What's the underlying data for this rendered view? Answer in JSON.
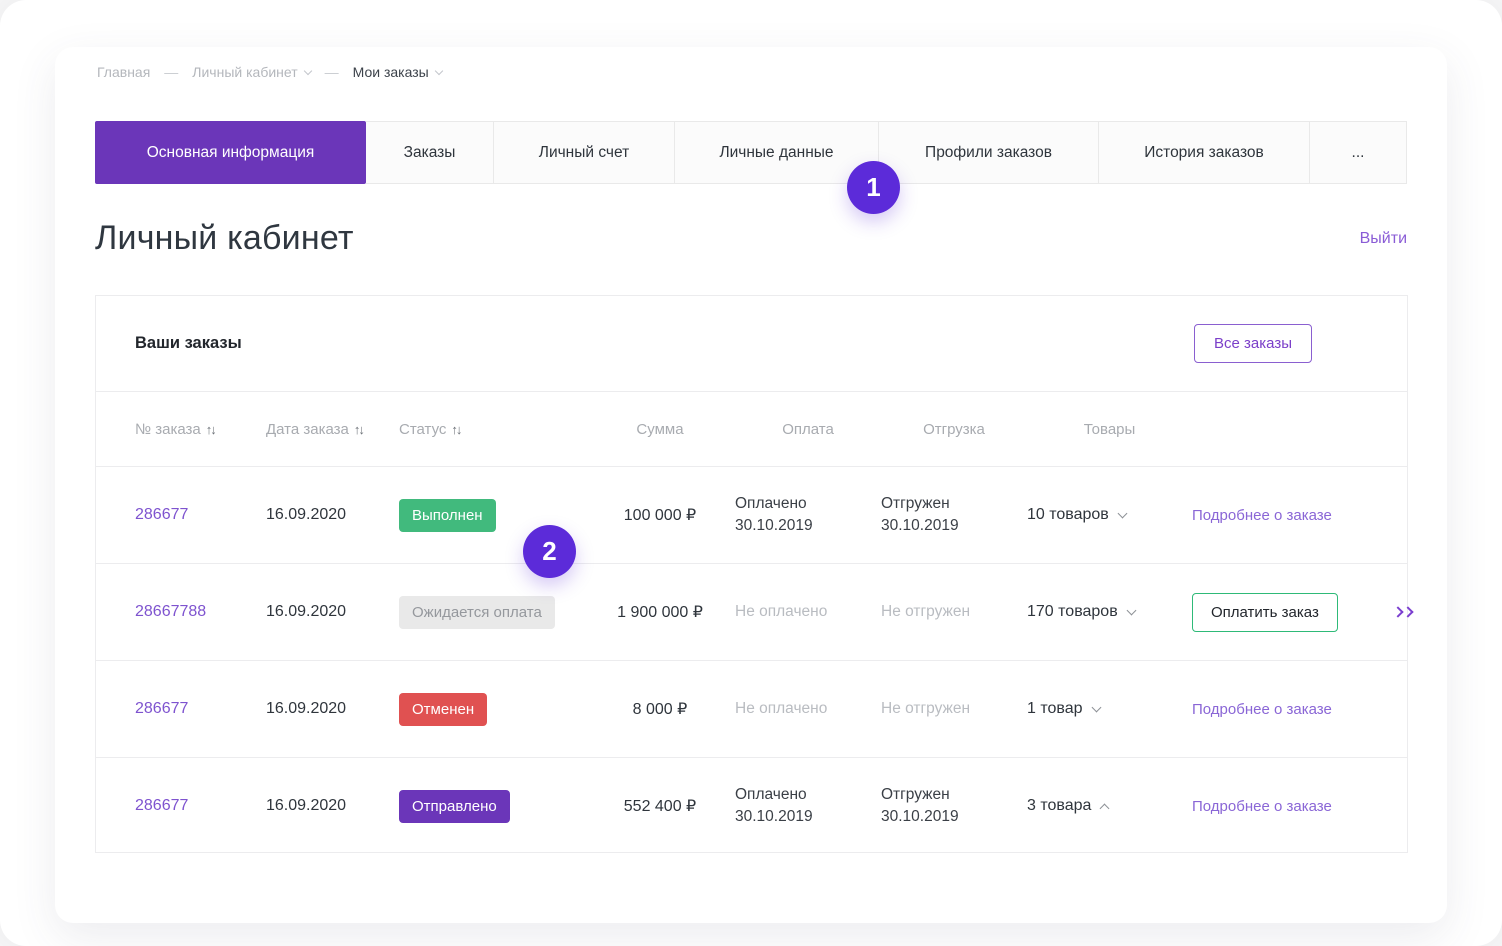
{
  "breadcrumb": {
    "separator": "—",
    "items": [
      {
        "label": "Главная"
      },
      {
        "label": "Личный кабинет"
      },
      {
        "label": "Мои заказы"
      }
    ]
  },
  "tabs": [
    {
      "label": "Основная информация",
      "active": true
    },
    {
      "label": "Заказы",
      "active": false
    },
    {
      "label": "Личный счет",
      "active": false
    },
    {
      "label": "Личные данные",
      "active": false
    },
    {
      "label": "Профили заказов",
      "active": false
    },
    {
      "label": "История заказов",
      "active": false
    },
    {
      "label": "...",
      "active": false
    }
  ],
  "page": {
    "title": "Личный кабинет",
    "logout_label": "Выйти"
  },
  "orders": {
    "heading": "Ваши заказы",
    "all_orders_button": "Все заказы",
    "sort_icon": "↑↓",
    "headers": {
      "order_no": "№ заказа",
      "date": "Дата заказа",
      "status": "Статус",
      "sum": "Сумма",
      "payment": "Оплата",
      "shipment": "Отгрузка",
      "items": "Товары"
    },
    "rows": [
      {
        "order_id": "286677",
        "date": "16.09.2020",
        "status": "Выполнен",
        "status_variant": "success",
        "sum": "100 000 ₽",
        "payment_line1": "Оплачено",
        "payment_line2": "30.10.2019",
        "shipment_line1": "Отгружен",
        "shipment_line2": "30.10.2019",
        "items_count": "10 товаров",
        "action_label": "Подробнее о заказе"
      },
      {
        "order_id": "28667788",
        "date": "16.09.2020",
        "status": "Ожидается оплата",
        "status_variant": "pending",
        "sum": "1 900 000 ₽",
        "payment_line1": "Не оплачено",
        "payment_line2": "",
        "shipment_line1": "Не отгружен",
        "shipment_line2": "",
        "items_count": "170 товаров",
        "action_label": "Оплатить заказ"
      },
      {
        "order_id": "286677",
        "date": "16.09.2020",
        "status": "Отменен",
        "status_variant": "cancelled",
        "sum": "8 000 ₽",
        "payment_line1": "Не оплачено",
        "payment_line2": "",
        "shipment_line1": "Не отгружен",
        "shipment_line2": "",
        "items_count": "1 товар",
        "action_label": "Подробнее о заказе"
      },
      {
        "order_id": "286677",
        "date": "16.09.2020",
        "status": "Отправлено",
        "status_variant": "shipped",
        "sum": "552 400 ₽",
        "payment_line1": "Оплачено",
        "payment_line2": "30.10.2019",
        "shipment_line1": "Отгружен",
        "shipment_line2": "30.10.2019",
        "items_count": "3 товара",
        "action_label": "Подробнее о заказе"
      }
    ]
  },
  "annotations": [
    {
      "number": "1"
    },
    {
      "number": "2"
    }
  ],
  "colors": {
    "accent_purple": "#6B36B9",
    "annotation_purple": "#5C2BD9",
    "link_purple": "#7E53CF",
    "success_green": "#41BA7D",
    "danger_red": "#E05151",
    "pending_gray_bg": "#E9E9E9"
  }
}
